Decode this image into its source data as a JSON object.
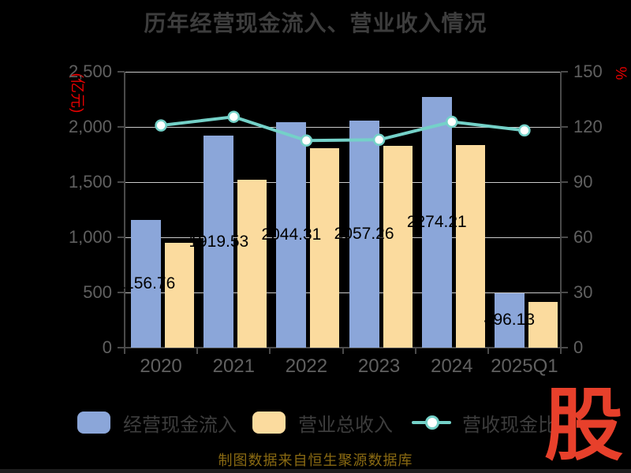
{
  "title": "历年经营现金流入、营业收入情况",
  "source_note": "制图数据来自恒生聚源数据库",
  "logo_text": "股",
  "colors": {
    "background": "#000000",
    "bar_cash": "#8ba6d9",
    "bar_revenue": "#fbdb9e",
    "line_ratio": "#74d1c8",
    "marker_fill": "#ffffff",
    "grid": "#cacaca",
    "axis": "#4a4a4a",
    "title_text": "#3d3d3d",
    "axis_text": "#606060",
    "unit_text": "#e60000",
    "bar_label_text": "#000000",
    "source_text": "#8a6a12",
    "logo_red": "#e7402b"
  },
  "chart_data": {
    "type": "combo-bar-line",
    "title": "历年经营现金流入、营业收入情况",
    "categories": [
      "2020",
      "2021",
      "2022",
      "2023",
      "2024",
      "2025Q1"
    ],
    "series": [
      {
        "name": "经营现金流入",
        "type": "bar",
        "axis": "left",
        "values": [
          1156.76,
          1919.53,
          2044.31,
          2057.26,
          2274.21,
          496.13
        ],
        "data_labels": [
          "1156.76",
          "1919.53",
          "2044.31",
          "2057.26",
          "2274.21",
          "496.13"
        ]
      },
      {
        "name": "营业总收入",
        "type": "bar",
        "axis": "left",
        "values": [
          950,
          1523,
          1806,
          1827,
          1834,
          418
        ]
      },
      {
        "name": "营收现金比",
        "type": "line",
        "axis": "right",
        "values": [
          120.8,
          125.5,
          112.6,
          113.0,
          122.8,
          118.1
        ]
      }
    ],
    "left_axis": {
      "unit": "(亿元)",
      "min": 0,
      "max": 2500,
      "tick_step": 500,
      "tick_labels": [
        "0",
        "500",
        "1,000",
        "1,500",
        "2,000",
        "2,500"
      ]
    },
    "right_axis": {
      "unit": "%",
      "min": 0,
      "max": 150,
      "tick_step": 30,
      "tick_labels": [
        "0",
        "30",
        "60",
        "90",
        "120",
        "150"
      ]
    },
    "grid": true,
    "legend_position": "bottom"
  },
  "legend": {
    "items": [
      {
        "label": "经营现金流入",
        "type": "bar",
        "color": "#8ba6d9"
      },
      {
        "label": "营业总收入",
        "type": "bar",
        "color": "#fbdb9e"
      },
      {
        "label": "营收现金比",
        "type": "line",
        "color": "#74d1c8"
      }
    ]
  }
}
